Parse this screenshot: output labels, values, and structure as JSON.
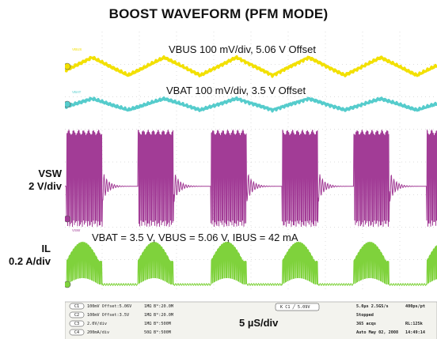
{
  "title": "BOOST WAVEFORM (PFM MODE)",
  "side_labels": {
    "vsw": [
      "VSW",
      "2 V/div"
    ],
    "il": [
      "IL",
      "0.2 A/div"
    ]
  },
  "annotations": {
    "vbus": "VBUS 100 mV/div, 5.06 V Offset",
    "vbat": "VBAT 100 mV/div, 3.5 V Offset",
    "conditions": "VBAT = 3.5 V, VBUS = 5.06 V, IBUS = 42 mA"
  },
  "timebase_label": "5 µS/div",
  "status_bar": {
    "channels": [
      {
        "badge": "C1",
        "text": "100mV  Offset:5.06V",
        "imp": "1MΩ",
        "bw": "Bᵂ:20.0M"
      },
      {
        "badge": "C2",
        "text": "100mV  Offset:3.5V",
        "imp": "1MΩ",
        "bw": "Bᵂ:20.0M"
      },
      {
        "badge": "C3",
        "text": "2.0V/div",
        "imp": "1MΩ",
        "bw": "Bᵂ:500M"
      },
      {
        "badge": "C4",
        "text": "200mA/div",
        "imp": "50Ω",
        "bw": "Bᵂ:500M"
      }
    ],
    "trigger": {
      "badge": "C1",
      "text": "5.09V"
    },
    "acquisition": [
      [
        "5.0µs   2.5GS/s",
        "400ps/pt"
      ],
      [
        "Stopped",
        ""
      ],
      [
        "365 acqs",
        "RL:125k"
      ],
      [
        "Auto   May 02, 2008",
        "14:49:14"
      ]
    ]
  },
  "trace_tags": [
    "VBUS",
    "VBAT",
    "VSW"
  ],
  "colors": {
    "vbus": "#f2e000",
    "vbat": "#55cccc",
    "vsw": "#a23c96",
    "il": "#7fd23c",
    "grid_bg": "#ffffff",
    "status_bg": "#f3f3ee"
  },
  "chart_data": {
    "type": "line",
    "x_unit": "µs",
    "x_div": 5,
    "x_range": [
      0,
      50
    ],
    "switching_bursts_start_us": [
      0.2,
      9.8,
      19.6,
      29.2,
      38.8,
      48.6
    ],
    "burst_duration_us": 4.8,
    "series": [
      {
        "name": "VBUS",
        "scale": "100 mV/div",
        "offset": "5.06 V",
        "shape": "triangle",
        "amplitude_div": 0.55
      },
      {
        "name": "VBAT",
        "scale": "100 mV/div",
        "offset": "3.5 V",
        "shape": "triangle",
        "amplitude_div": 0.35
      },
      {
        "name": "VSW",
        "scale": "2 V/div",
        "shape": "switching",
        "high_div": 2.3,
        "idle_div": 1.0
      },
      {
        "name": "IL",
        "scale": "0.2 A/div",
        "shape": "switching",
        "peak_div": 1.0
      }
    ]
  }
}
